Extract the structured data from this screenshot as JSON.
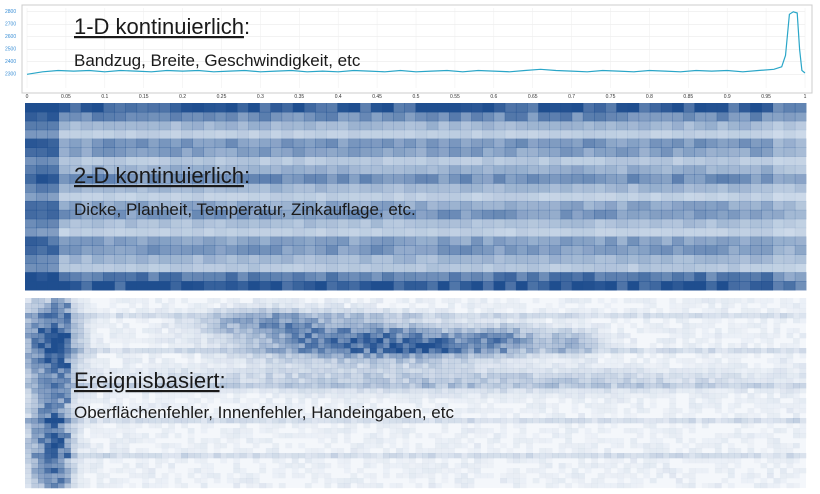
{
  "panels": [
    {
      "heading": "1-D kontinuierlich",
      "heading_suffix": ":",
      "subheading": "Bandzug, Breite, Geschwindigkeit, etc",
      "chart": {
        "type": "line",
        "color": "#2aa6c8",
        "x": [
          0,
          0.02,
          0.04,
          0.06,
          0.08,
          0.1,
          0.12,
          0.14,
          0.16,
          0.18,
          0.2,
          0.22,
          0.24,
          0.26,
          0.28,
          0.3,
          0.32,
          0.34,
          0.36,
          0.38,
          0.4,
          0.42,
          0.44,
          0.46,
          0.48,
          0.5,
          0.52,
          0.54,
          0.56,
          0.58,
          0.6,
          0.62,
          0.64,
          0.66,
          0.68,
          0.7,
          0.72,
          0.74,
          0.76,
          0.78,
          0.8,
          0.82,
          0.84,
          0.86,
          0.88,
          0.9,
          0.92,
          0.94,
          0.96,
          0.97,
          0.975,
          0.98,
          0.985,
          0.99,
          0.993,
          0.996,
          1
        ],
        "values": [
          2300,
          2320,
          2330,
          2325,
          2330,
          2320,
          2330,
          2325,
          2320,
          2330,
          2325,
          2330,
          2320,
          2325,
          2330,
          2320,
          2325,
          2330,
          2320,
          2325,
          2320,
          2330,
          2325,
          2320,
          2330,
          2320,
          2325,
          2330,
          2320,
          2330,
          2325,
          2320,
          2330,
          2340,
          2330,
          2325,
          2320,
          2330,
          2325,
          2320,
          2330,
          2325,
          2320,
          2330,
          2325,
          2330,
          2320,
          2330,
          2340,
          2360,
          2450,
          2780,
          2800,
          2790,
          2500,
          2330,
          2310
        ],
        "xlim": [
          0,
          1
        ],
        "ylim": [
          2190,
          2830
        ],
        "yticks": [
          2300,
          2400,
          2500,
          2600,
          2700,
          2800
        ],
        "xticks": [
          0,
          0.05,
          0.1,
          0.15,
          0.2,
          0.25,
          0.3,
          0.35,
          0.4,
          0.45,
          0.5,
          0.55,
          0.6,
          0.65,
          0.7,
          0.75,
          0.8,
          0.85,
          0.9,
          0.95,
          1
        ],
        "grid": true
      }
    },
    {
      "heading": "2-D kontinuierlich",
      "heading_suffix": ":",
      "subheading": "Dicke, Planheit, Temperatur, Zinkauflage, etc."
    },
    {
      "heading": "Ereignisbasiert",
      "heading_suffix": ":",
      "subheading": "Oberflächenfehler, Innenfehler, Handeingaben, etc"
    }
  ]
}
